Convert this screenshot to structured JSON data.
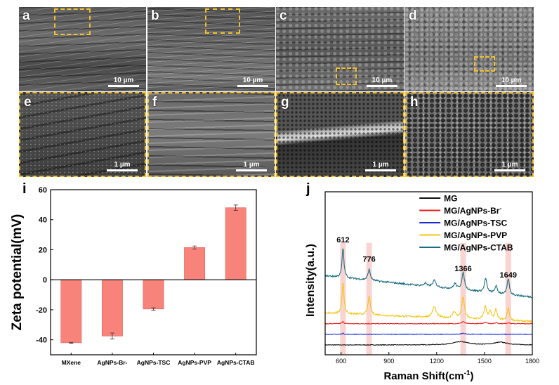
{
  "sem_panels": [
    {
      "label": "a",
      "scale": "10 µm"
    },
    {
      "label": "b",
      "scale": "10 µm"
    },
    {
      "label": "c",
      "scale": "10 µm"
    },
    {
      "label": "d",
      "scale": "10 µm"
    },
    {
      "label": "e",
      "scale": "1 µm"
    },
    {
      "label": "f",
      "scale": "1 µm"
    },
    {
      "label": "g",
      "scale": "1 µm"
    },
    {
      "label": "h",
      "scale": "1 µm"
    }
  ],
  "colors": {
    "highlight": "#f0c030",
    "bar": "#f8837b",
    "peak_band": "#f9c9c6"
  },
  "chart_data": [
    {
      "panel": "i",
      "type": "bar",
      "title": "",
      "xlabel": "",
      "ylabel": "Zeta potential(mV)",
      "ylim": [
        -50,
        60
      ],
      "yticks": [
        -40,
        -20,
        0,
        20,
        40,
        60
      ],
      "categories": [
        "MXene",
        "AgNPs-Br-",
        "AgNPs-TSC",
        "AgNPs-PVP",
        "AgNPs-CTAB"
      ],
      "values": [
        -42,
        -37.5,
        -19.5,
        21.5,
        48
      ],
      "errors": [
        0.3,
        2,
        0.8,
        1,
        1.8
      ],
      "grid": false
    },
    {
      "panel": "j",
      "type": "line",
      "xlabel": "Raman Shift(cm",
      "xlabel_sup": "-1",
      "xlabel_end": ")",
      "ylabel": "Intensity(a.u.)",
      "xlim": [
        500,
        1800
      ],
      "xticks": [
        600,
        900,
        1200,
        1500,
        1800
      ],
      "legend_position": "top-right",
      "peak_labels": [
        "612",
        "776",
        "1366",
        "1649"
      ],
      "peak_positions": [
        612,
        776,
        1366,
        1649
      ],
      "series": [
        {
          "name": "MG",
          "color": "#111111",
          "offset": 0,
          "baseline_slope": 0,
          "peaks": [
            [
              1350,
              3,
              60
            ],
            [
              1600,
              2.5,
              50
            ]
          ]
        },
        {
          "name": "MG/AgNPs-Br",
          "name_sup": "-",
          "color": "#e8201c",
          "offset": 20,
          "baseline_slope": 0,
          "peaks": [
            [
              612,
              2,
              6
            ],
            [
              1366,
              2,
              10
            ],
            [
              1505,
              1.5,
              10
            ],
            [
              1575,
              1,
              8
            ],
            [
              1649,
              1,
              8
            ]
          ]
        },
        {
          "name": "MG/AgNPs-TSC",
          "color": "#1a2fd8",
          "offset": 10,
          "baseline_slope": 0,
          "peaks": [
            [
              612,
              1,
              6
            ],
            [
              1366,
              1,
              15
            ]
          ]
        },
        {
          "name": "MG/AgNPs-PVP",
          "color": "#f5c518",
          "offset": 30,
          "baseline_slope": -8,
          "peaks": [
            [
              612,
              30,
              7
            ],
            [
              776,
              17,
              9
            ],
            [
              1185,
              10,
              14
            ],
            [
              1310,
              6,
              12
            ],
            [
              1366,
              20,
              10
            ],
            [
              1505,
              12,
              10
            ],
            [
              1535,
              8,
              8
            ],
            [
              1572,
              10,
              8
            ],
            [
              1649,
              12,
              8
            ]
          ]
        },
        {
          "name": "MG/AgNPs-CTAB",
          "color": "#1b6e82",
          "offset": 65,
          "baseline_slope": -20,
          "peaks": [
            [
              612,
              28,
              7
            ],
            [
              776,
              10,
              9
            ],
            [
              1128,
              3,
              8
            ],
            [
              1185,
              6,
              12
            ],
            [
              1315,
              5,
              10
            ],
            [
              1366,
              16,
              10
            ],
            [
              1507,
              13,
              9
            ],
            [
              1572,
              7,
              8
            ],
            [
              1649,
              15,
              8
            ]
          ]
        }
      ]
    }
  ]
}
